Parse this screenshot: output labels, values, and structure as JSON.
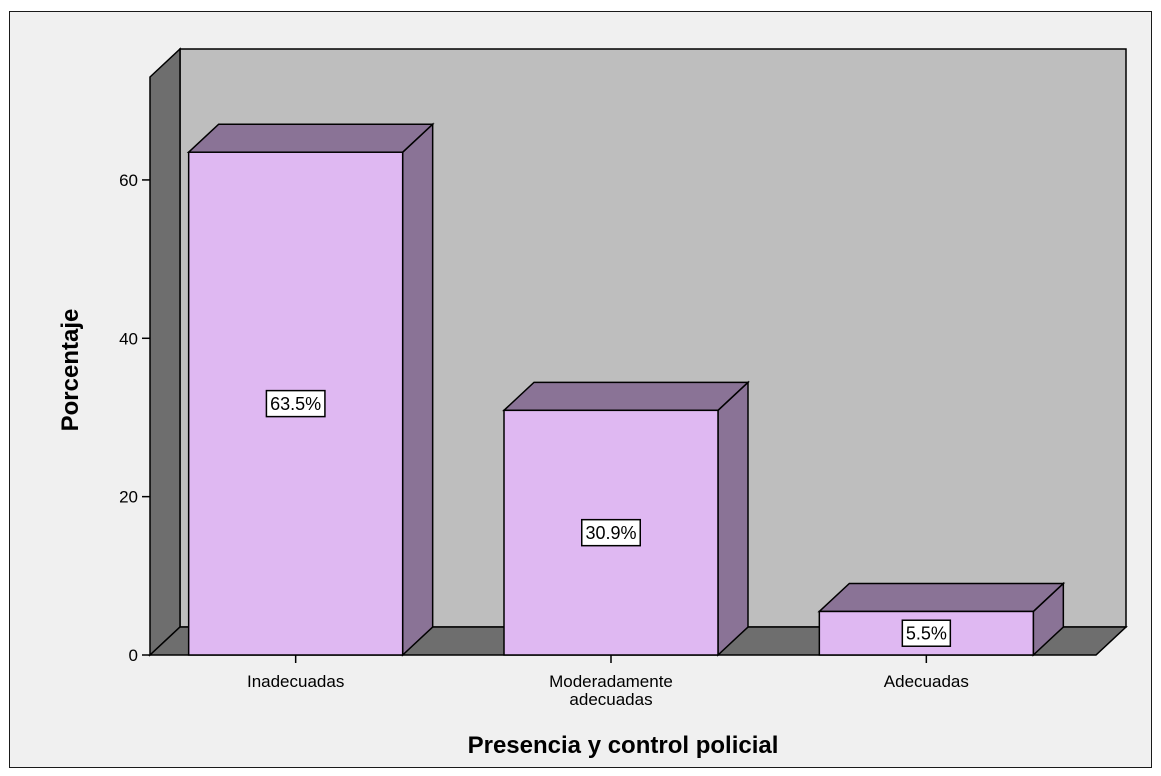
{
  "chart_data": {
    "type": "bar",
    "style": "3d",
    "categories": [
      [
        "Inadecuadas"
      ],
      [
        "Moderadamente",
        "adecuadas"
      ],
      [
        "Adecuadas"
      ]
    ],
    "values": [
      63.5,
      30.9,
      5.5
    ],
    "data_labels": [
      "63.5%",
      "30.9%",
      "5.5%"
    ],
    "xlabel": "Presencia y control policial",
    "ylabel": "Porcentaje",
    "ylim": [
      0,
      73
    ],
    "yticks": [
      0,
      20,
      40,
      60
    ],
    "grid": false,
    "legend": "none",
    "colors": {
      "bar_front": "#dfb8f2",
      "bar_side": "#8a7396",
      "bar_top": "#8a7396",
      "back_wall": "#bebebe",
      "side_wall": "#6e6e6e",
      "floor": "#6e6e6e",
      "frame_background": "#f0f0f0"
    }
  }
}
